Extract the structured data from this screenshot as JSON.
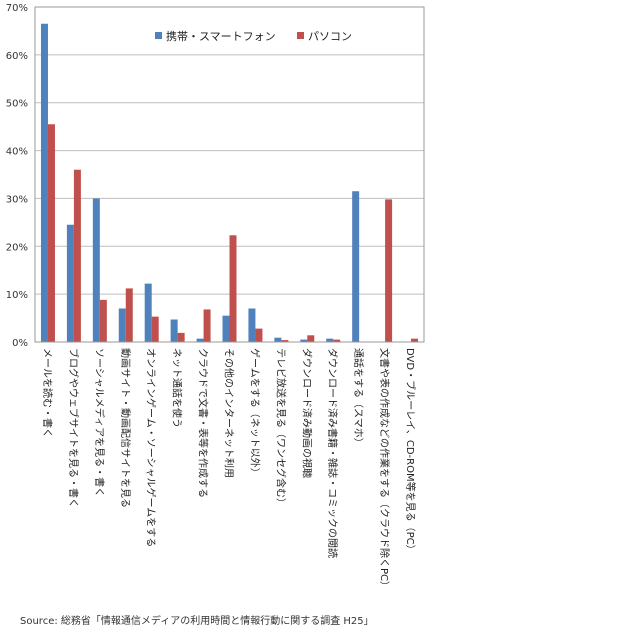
{
  "chart_data": {
    "type": "bar",
    "categories": [
      "メールを読む・書く",
      "ブログやウェブサイトを見る・書く",
      "ソーシャルメディアを見る・書く",
      "動画サイト・動画配信サイトを見る",
      "オンラインゲーム・ソーシャルゲームをする",
      "ネット通話を使う",
      "クラウドで文書・表等を作成する",
      "その他のインターネット利用",
      "ゲームをする（ネット以外）",
      "テレビ放送を見る（ワンセグ含む）",
      "ダウンロード済み動画の視聴",
      "ダウンロード済み書籍・雑誌・コミックの閲読",
      "通話をする（スマホ）",
      "文書や表の作成などの作業をする（クラウド除くPC）",
      "DVD・ブルーレイ、CD-ROM等を見る（PC）"
    ],
    "series": [
      {
        "name": "携帯・スマートフォン",
        "color": "#4f81bd",
        "values": [
          66.5,
          24.5,
          30.0,
          7.0,
          12.2,
          4.7,
          0.7,
          5.5,
          7.0,
          0.9,
          0.5,
          0.7,
          31.5,
          null,
          null
        ]
      },
      {
        "name": "パソコン",
        "color": "#c0504d",
        "values": [
          45.5,
          36.0,
          8.8,
          11.2,
          5.3,
          1.9,
          6.8,
          22.3,
          2.8,
          0.4,
          1.4,
          0.5,
          null,
          29.8,
          0.7
        ]
      }
    ],
    "ylim": [
      0,
      70
    ],
    "yticks": [
      0,
      10,
      20,
      30,
      40,
      50,
      60,
      70
    ],
    "ytick_labels": [
      "0%",
      "10%",
      "20%",
      "30%",
      "40%",
      "50%",
      "60%",
      "70%"
    ],
    "grid": true,
    "legend_position": "top-center"
  },
  "source": "Source: 総務省「情報通信メディアの利用時間と情報行動に関する調査 H25」"
}
